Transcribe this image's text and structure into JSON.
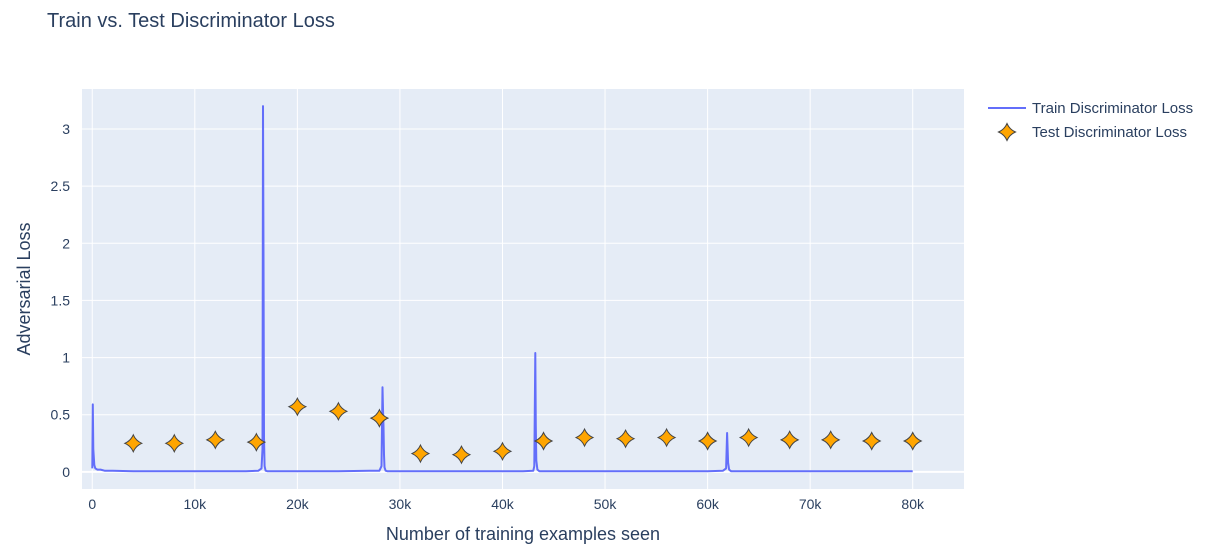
{
  "chart_data": {
    "type": "line",
    "title": "Train vs. Test Discriminator Loss",
    "xlabel": "Number of training examples seen",
    "ylabel": "Adversarial Loss",
    "xlim": [
      -1000,
      85000
    ],
    "ylim": [
      -0.15,
      3.35
    ],
    "x_ticks": [
      0,
      10000,
      20000,
      30000,
      40000,
      50000,
      60000,
      70000,
      80000
    ],
    "x_tick_labels": [
      "0",
      "10k",
      "20k",
      "30k",
      "40k",
      "50k",
      "60k",
      "70k",
      "80k"
    ],
    "y_ticks": [
      0,
      0.5,
      1,
      1.5,
      2,
      2.5,
      3
    ],
    "y_tick_labels": [
      "0",
      "0.5",
      "1",
      "1.5",
      "2",
      "2.5",
      "3"
    ],
    "grid": true,
    "legend_position": "right",
    "background_color": "#e5ecf6",
    "series": [
      {
        "name": "Train Discriminator Loss",
        "mode": "line",
        "color": "#636efa",
        "x": [
          0,
          50,
          100,
          200,
          300,
          500,
          800,
          1200,
          2000,
          4000,
          8000,
          12000,
          15000,
          16200,
          16500,
          16600,
          16650,
          16700,
          16750,
          16800,
          16900,
          17100,
          17500,
          20000,
          24000,
          27000,
          28000,
          28200,
          28300,
          28350,
          28400,
          28450,
          28500,
          28600,
          28800,
          30000,
          34000,
          38000,
          42000,
          43000,
          43100,
          43200,
          43250,
          43300,
          43400,
          43600,
          44000,
          48000,
          52000,
          56000,
          60000,
          61500,
          61800,
          61900,
          62000,
          62100,
          62300,
          63000,
          66000,
          70000,
          74000,
          78000,
          80000
        ],
        "y": [
          0.03,
          0.59,
          0.2,
          0.06,
          0.03,
          0.02,
          0.02,
          0.01,
          0.01,
          0.005,
          0.005,
          0.005,
          0.005,
          0.01,
          0.03,
          0.2,
          3.2,
          1.9,
          0.3,
          0.05,
          0.01,
          0.005,
          0.005,
          0.005,
          0.005,
          0.01,
          0.01,
          0.05,
          0.74,
          0.55,
          0.4,
          0.15,
          0.04,
          0.01,
          0.005,
          0.005,
          0.005,
          0.005,
          0.005,
          0.01,
          0.05,
          1.04,
          0.4,
          0.1,
          0.02,
          0.005,
          0.005,
          0.005,
          0.005,
          0.005,
          0.005,
          0.01,
          0.03,
          0.34,
          0.08,
          0.02,
          0.005,
          0.005,
          0.005,
          0.005,
          0.005,
          0.005,
          0.005
        ]
      },
      {
        "name": "Test Discriminator Loss",
        "mode": "markers",
        "marker": "star-diamond",
        "color": "#ffa500",
        "outline_color": "#444444",
        "x": [
          4000,
          8000,
          12000,
          16000,
          20000,
          24000,
          28000,
          32000,
          36000,
          40000,
          44000,
          48000,
          52000,
          56000,
          60000,
          64000,
          68000,
          72000,
          76000,
          80000
        ],
        "y": [
          0.25,
          0.25,
          0.28,
          0.26,
          0.57,
          0.53,
          0.47,
          0.16,
          0.15,
          0.18,
          0.27,
          0.3,
          0.29,
          0.3,
          0.27,
          0.3,
          0.28,
          0.28,
          0.27,
          0.27
        ]
      }
    ]
  }
}
